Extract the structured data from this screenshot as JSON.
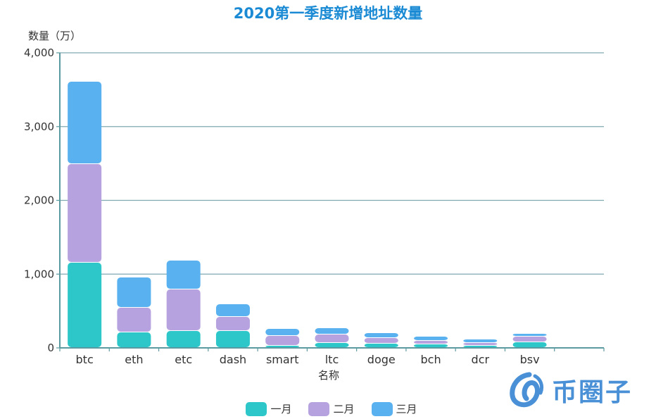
{
  "title": "2020第一季度新增地址数量",
  "y_axis_label": "数量（万）",
  "x_axis_label": "名称",
  "colors": {
    "title": "#1a8ad4",
    "axis": "#5a9aa0",
    "grid": "#7fa9b0",
    "jan": "#2ec7c9",
    "feb": "#b6a2de",
    "mar": "#5ab1ef",
    "logo": "#4a90d6"
  },
  "legend": [
    {
      "label": "一月",
      "color": "#2ec7c9"
    },
    {
      "label": "二月",
      "color": "#b6a2de"
    },
    {
      "label": "三月",
      "color": "#5ab1ef"
    }
  ],
  "y_ticks": [
    "0",
    "1,000",
    "2,000",
    "3,000",
    "4,000"
  ],
  "watermark": "币圈子",
  "chart_data": {
    "type": "bar",
    "stacked": true,
    "title": "2020第一季度新增地址数量",
    "xlabel": "名称",
    "ylabel": "数量（万）",
    "ylim": [
      0,
      4000
    ],
    "grid": true,
    "legend_position": "bottom",
    "categories": [
      "btc",
      "eth",
      "etc",
      "dash",
      "smart",
      "ltc",
      "doge",
      "bch",
      "dcr",
      "bsv",
      ""
    ],
    "series": [
      {
        "name": "一月",
        "values": [
          1155,
          210,
          229,
          229,
          29,
          67,
          57,
          48,
          29,
          76,
          null
        ]
      },
      {
        "name": "二月",
        "values": [
          1337,
          334,
          563,
          191,
          133,
          114,
          77,
          47,
          38,
          77,
          null
        ]
      },
      {
        "name": "三月",
        "values": [
          1116,
          411,
          392,
          172,
          96,
          86,
          66,
          58,
          48,
          38,
          null
        ]
      }
    ]
  }
}
